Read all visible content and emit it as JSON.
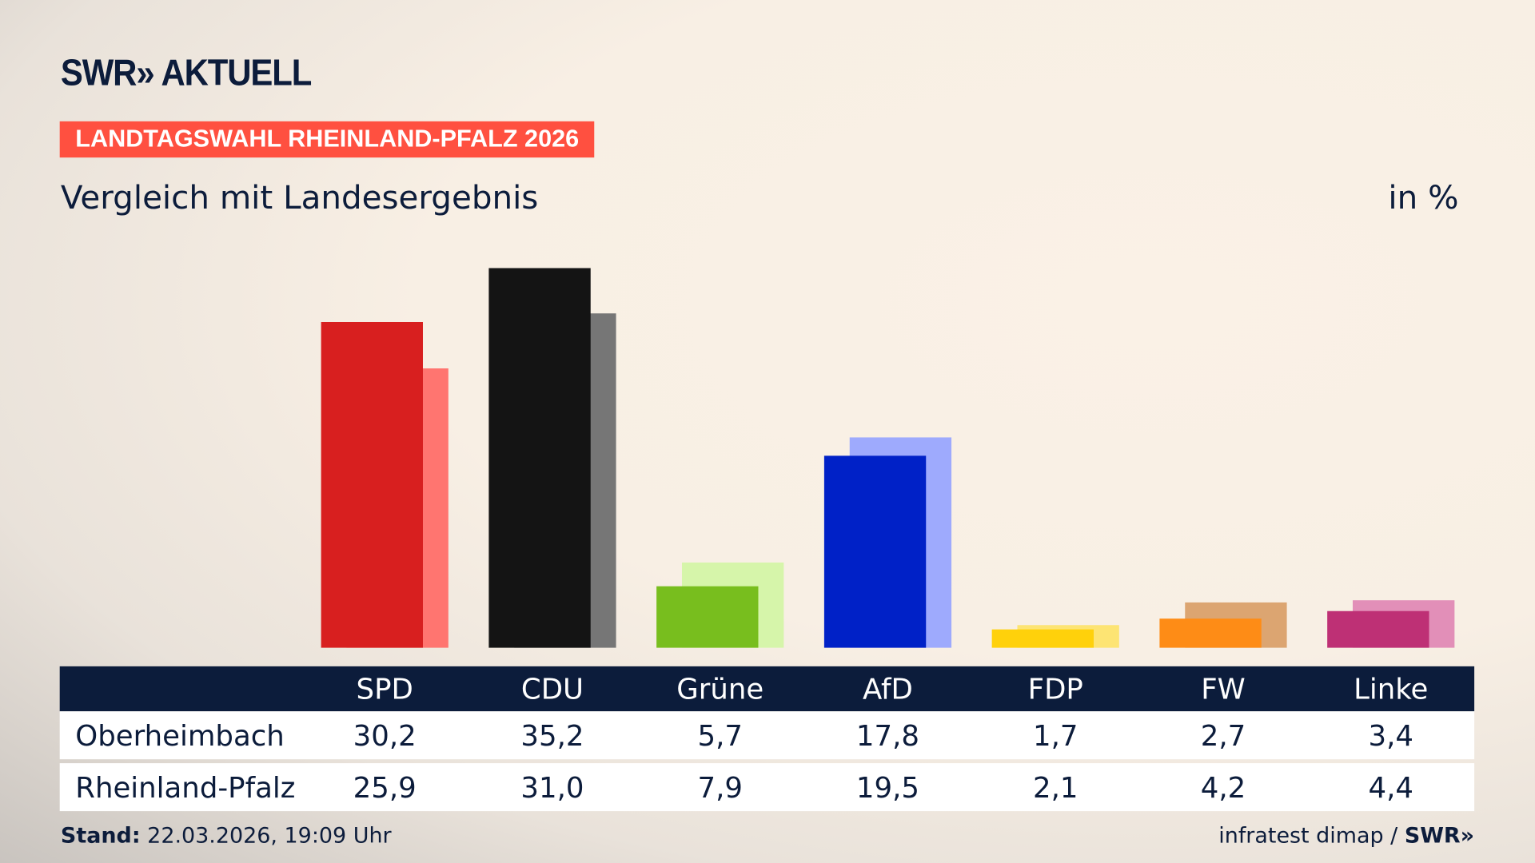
{
  "header": {
    "logo": "SWR» AKTUELL",
    "badge": "LANDTAGSWAHL RHEINLAND-PFALZ 2026",
    "subtitle": "Vergleich mit Landesergebnis",
    "unit": "in %"
  },
  "chart_data": {
    "type": "bar",
    "categories": [
      "SPD",
      "CDU",
      "Grüne",
      "AfD",
      "FDP",
      "FW",
      "Linke"
    ],
    "series": [
      {
        "name": "Oberheimbach",
        "values": [
          30.2,
          35.2,
          5.7,
          17.8,
          1.7,
          2.7,
          3.4
        ],
        "display": [
          "30,2",
          "35,2",
          "5,7",
          "17,8",
          "1,7",
          "2,7",
          "3,4"
        ]
      },
      {
        "name": "Rheinland-Pfalz",
        "values": [
          25.9,
          31.0,
          7.9,
          19.5,
          2.1,
          4.2,
          4.4
        ],
        "display": [
          "25,9",
          "31,0",
          "7,9",
          "19,5",
          "2,1",
          "4,2",
          "4,4"
        ]
      }
    ],
    "colors": [
      "#d81f1f",
      "#141414",
      "#78be1e",
      "#0021c7",
      "#ffd10b",
      "#fe8c16",
      "#be3075"
    ],
    "colors_light": [
      "#ff7570",
      "#767676",
      "#d6f5aa",
      "#9eaafd",
      "#fde473",
      "#dca571",
      "#e28fb8"
    ],
    "ylim": [
      0,
      35.2
    ]
  },
  "footer": {
    "stand_label": "Stand:",
    "stand_value": " 22.03.2026, 19:09 Uhr",
    "source": "infratest dimap / ",
    "source_logo": "SWR»"
  }
}
